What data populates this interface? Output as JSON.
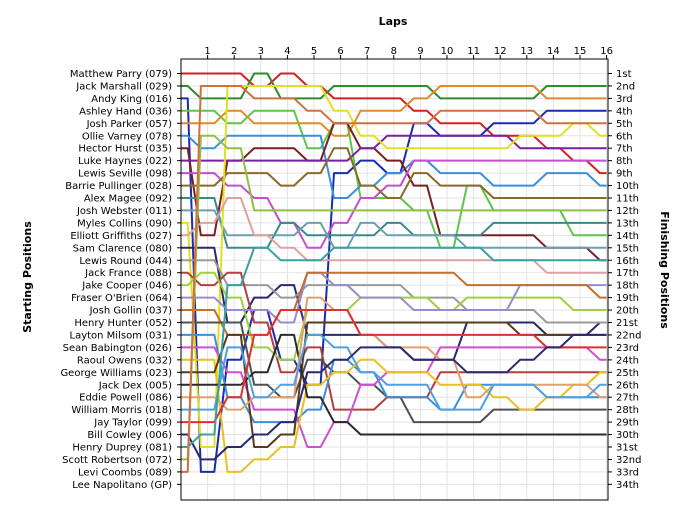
{
  "chart_data": {
    "type": "line",
    "title": "",
    "xlabel": "Laps",
    "ylabel_left": "Starting Positions",
    "ylabel_right": "Finishing Positions",
    "laps": [
      1,
      2,
      3,
      4,
      5,
      6,
      7,
      8,
      9,
      10,
      11,
      12,
      13,
      14,
      15,
      16
    ],
    "finishing_labels": [
      "1st",
      "2nd",
      "3rd",
      "4th",
      "5th",
      "6th",
      "7th",
      "8th",
      "9th",
      "10th",
      "11th",
      "12th",
      "13th",
      "14th",
      "15th",
      "16th",
      "17th",
      "18th",
      "19th",
      "20th",
      "21st",
      "22nd",
      "23rd",
      "24th",
      "25th",
      "26th",
      "27th",
      "28th",
      "29th",
      "30th",
      "31st",
      "32nd",
      "33rd",
      "34th"
    ],
    "grid": true,
    "series": [
      {
        "name": "Matthew Parry (079)",
        "color": "#d62020",
        "positions": [
          1,
          1,
          2,
          1,
          2,
          3,
          3,
          3,
          4,
          5,
          5,
          6,
          6,
          7,
          8,
          9
        ]
      },
      {
        "name": "Jack Marshall (029)",
        "color": "#2d8c2d",
        "positions": [
          3,
          3,
          1,
          3,
          3,
          2,
          2,
          2,
          2,
          3,
          3,
          3,
          3,
          2,
          2,
          2
        ]
      },
      {
        "name": "Andy King (016)",
        "color": "#1a2bb0",
        "positions": [
          33,
          24,
          20,
          24,
          26,
          9,
          8,
          9,
          5,
          6,
          6,
          5,
          5,
          4,
          4,
          4
        ]
      },
      {
        "name": "Ashley Hand (036)",
        "color": "#5cc64a",
        "positions": [
          4,
          5,
          4,
          4,
          7,
          5,
          11,
          11,
          12,
          15,
          10,
          12,
          12,
          12,
          14,
          14
        ]
      },
      {
        "name": "Josh Parker (057)",
        "color": "#e08a2c",
        "positions": [
          5,
          4,
          5,
          5,
          5,
          6,
          4,
          4,
          3,
          2,
          2,
          2,
          2,
          3,
          3,
          3
        ]
      },
      {
        "name": "Ollie Varney (078)",
        "color": "#3a8fdc",
        "positions": [
          7,
          6,
          6,
          6,
          6,
          11,
          10,
          9,
          8,
          9,
          9,
          10,
          10,
          9,
          9,
          10
        ]
      },
      {
        "name": "Hector Hurst (035)",
        "color": "#7a1f1f",
        "positions": [
          14,
          8,
          7,
          7,
          8,
          5,
          7,
          8,
          10,
          14,
          14,
          14,
          14,
          15,
          15,
          16
        ]
      },
      {
        "name": "Luke Haynes (022)",
        "color": "#7a1fa0",
        "positions": [
          8,
          8,
          8,
          8,
          8,
          8,
          7,
          6,
          6,
          6,
          6,
          6,
          7,
          7,
          7,
          7
        ]
      },
      {
        "name": "Lewis Seville (098)",
        "color": "#c44fd0",
        "positions": [
          9,
          10,
          11,
          13,
          15,
          13,
          11,
          10,
          8,
          8,
          8,
          8,
          8,
          8,
          8,
          8
        ]
      },
      {
        "name": "Barrie Pullinger (028)",
        "color": "#8a6a2a",
        "positions": [
          10,
          9,
          9,
          10,
          9,
          7,
          10,
          11,
          9,
          10,
          10,
          11,
          11,
          11,
          11,
          11
        ]
      },
      {
        "name": "Alex Magee (092)",
        "color": "#3a8a8a",
        "positions": [
          11,
          15,
          15,
          13,
          14,
          14,
          14,
          13,
          14,
          14,
          14,
          13,
          13,
          13,
          13,
          13
        ]
      },
      {
        "name": "Josh Webster (011)",
        "color": "#6aa0b0",
        "positions": [
          12,
          14,
          14,
          14,
          13,
          15,
          13,
          14,
          14,
          14,
          15,
          15,
          15,
          15,
          15,
          15
        ]
      },
      {
        "name": "Myles Collins (090)",
        "color": "#e0e020",
        "positions": [
          31,
          2,
          2,
          2,
          2,
          4,
          6,
          7,
          7,
          7,
          7,
          7,
          6,
          6,
          5,
          6
        ]
      },
      {
        "name": "Elliott Griffiths (027)",
        "color": "#e0a0a0",
        "positions": [
          13,
          11,
          14,
          15,
          16,
          16,
          16,
          16,
          16,
          16,
          16,
          16,
          16,
          17,
          17,
          17
        ]
      },
      {
        "name": "Sam Clarence (080)",
        "color": "#2a2a6a",
        "positions": [
          15,
          21,
          19,
          18,
          22,
          22,
          22,
          23,
          24,
          24,
          21,
          21,
          21,
          22,
          22,
          21
        ]
      },
      {
        "name": "Lewis Round (044)",
        "color": "#9a9a9a",
        "positions": [
          16,
          18,
          18,
          19,
          18,
          18,
          18,
          18,
          19,
          19,
          20,
          20,
          20,
          21,
          21,
          21
        ]
      },
      {
        "name": "Jack France (088)",
        "color": "#b04040",
        "positions": [
          18,
          17,
          21,
          25,
          23,
          28,
          28,
          27,
          27,
          25,
          25,
          25,
          25,
          25,
          25,
          25
        ]
      },
      {
        "name": "Jake Cooper (046)",
        "color": "#a0d040",
        "positions": [
          17,
          19,
          23,
          24,
          20,
          20,
          19,
          19,
          19,
          20,
          19,
          19,
          19,
          19,
          20,
          20
        ]
      },
      {
        "name": "Fraser O'Brien (064)",
        "color": "#9a8ad0",
        "positions": [
          19,
          20,
          20,
          21,
          17,
          18,
          19,
          19,
          20,
          20,
          20,
          20,
          18,
          18,
          18,
          18
        ]
      },
      {
        "name": "Josh Gollin (037)",
        "color": "#c07030",
        "positions": [
          20,
          22,
          22,
          20,
          17,
          17,
          17,
          17,
          17,
          17,
          18,
          18,
          18,
          18,
          18,
          19
        ]
      },
      {
        "name": "Henry Hunter (052)",
        "color": "#505050",
        "positions": [
          21,
          21,
          26,
          27,
          24,
          25,
          26,
          27,
          29,
          29,
          29,
          28,
          28,
          28,
          28,
          28
        ]
      },
      {
        "name": "Layton Milsom (031)",
        "color": "#3a8fdc",
        "positions": [
          22,
          27,
          29,
          29,
          28,
          24,
          25,
          27,
          27,
          28,
          26,
          26,
          26,
          27,
          27,
          27
        ]
      },
      {
        "name": "Sean Babington (026)",
        "color": "#d04fd0",
        "positions": [
          23,
          25,
          28,
          28,
          31,
          29,
          26,
          25,
          25,
          23,
          23,
          23,
          23,
          23,
          23,
          24
        ]
      },
      {
        "name": "Raoul Owens (032)",
        "color": "#e8c020",
        "positions": [
          24,
          33,
          32,
          31,
          26,
          25,
          24,
          25,
          25,
          26,
          26,
          27,
          28,
          27,
          26,
          25
        ]
      },
      {
        "name": "George Williams (023)",
        "color": "#5a3a1a",
        "positions": [
          25,
          22,
          31,
          30,
          21,
          21,
          21,
          21,
          21,
          21,
          21,
          21,
          22,
          22,
          22,
          22
        ]
      },
      {
        "name": "Jack Dex (005)",
        "color": "#2a2a2a",
        "positions": [
          26,
          26,
          25,
          22,
          27,
          29,
          30,
          30,
          30,
          30,
          30,
          30,
          30,
          30,
          30,
          30
        ]
      },
      {
        "name": "Eddie Powell (086)",
        "color": "#e0a070",
        "positions": [
          27,
          28,
          27,
          27,
          19,
          20,
          22,
          23,
          23,
          24,
          27,
          26,
          26,
          26,
          26,
          27
        ]
      },
      {
        "name": "William Morris (018)",
        "color": "#4fa0e0",
        "positions": [
          28,
          23,
          27,
          26,
          22,
          23,
          25,
          26,
          26,
          28,
          28,
          26,
          26,
          27,
          27,
          26
        ]
      },
      {
        "name": "Jay Taylor (099)",
        "color": "#e03030",
        "positions": [
          29,
          27,
          22,
          20,
          20,
          20,
          22,
          22,
          22,
          22,
          22,
          22,
          22,
          23,
          23,
          23
        ]
      },
      {
        "name": "Bill Cowley (006)",
        "color": "#2a2a70",
        "positions": [
          32,
          31,
          30,
          29,
          25,
          24,
          23,
          23,
          24,
          24,
          25,
          25,
          24,
          23,
          22,
          22
        ]
      },
      {
        "name": "Henry Duprey (081)",
        "color": "#3aa0a0",
        "positions": [
          30,
          18,
          15,
          16,
          16,
          15,
          15,
          15,
          15,
          15,
          15,
          16,
          16,
          16,
          16,
          16
        ]
      },
      {
        "name": "Scott Robertson (072)",
        "color": "#90c040",
        "positions": [
          6,
          7,
          12,
          12,
          12,
          12,
          12,
          12,
          12,
          12,
          12,
          12,
          12,
          12,
          12,
          12
        ]
      },
      {
        "name": "Levi Coombs (089)",
        "color": "#d07040",
        "positions": [
          2,
          2,
          3,
          3,
          4,
          5,
          5,
          5,
          5,
          4,
          4,
          4,
          4,
          5,
          5,
          5
        ]
      },
      {
        "name": "Lee Napolitano (GP)",
        "color": "#40b040",
        "positions": [
          null,
          null,
          null,
          null,
          null,
          null,
          null,
          null,
          null,
          null,
          null,
          null,
          null,
          null,
          null,
          null
        ]
      }
    ]
  }
}
